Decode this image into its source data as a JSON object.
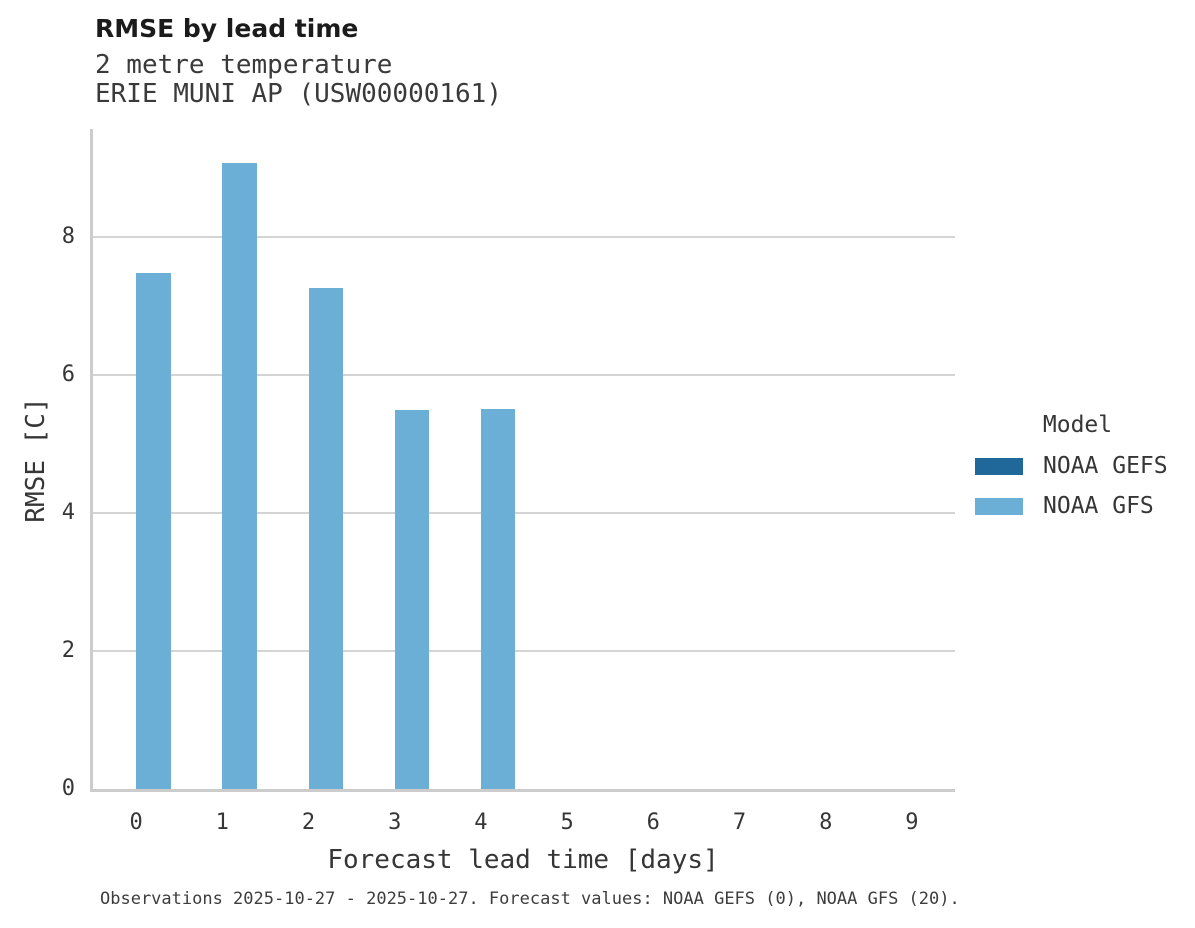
{
  "chart_data": {
    "type": "bar",
    "title": "RMSE by lead time",
    "subtitle": [
      "2 metre temperature",
      "ERIE MUNI AP (USW00000161)"
    ],
    "xlabel": "Forecast lead time [days]",
    "ylabel": "RMSE [C]",
    "categories": [
      0,
      1,
      2,
      3,
      4,
      5,
      6,
      7,
      8,
      9
    ],
    "series": [
      {
        "name": "NOAA GEFS",
        "color": "#20689A",
        "values": [
          null,
          null,
          null,
          null,
          null,
          null,
          null,
          null,
          null,
          null
        ]
      },
      {
        "name": "NOAA GFS",
        "color": "#6BAED6",
        "values": [
          7.47,
          9.07,
          7.25,
          5.49,
          5.51,
          null,
          null,
          null,
          null,
          null
        ]
      }
    ],
    "ylim": [
      0,
      9.56
    ],
    "yticks": [
      0,
      2,
      4,
      6,
      8
    ],
    "grid": "horizontal",
    "legend": {
      "title": "Model",
      "position": "right"
    },
    "caption": "Observations 2025-10-27 - 2025-10-27. Forecast values: NOAA GEFS (0), NOAA GFS (20)."
  }
}
